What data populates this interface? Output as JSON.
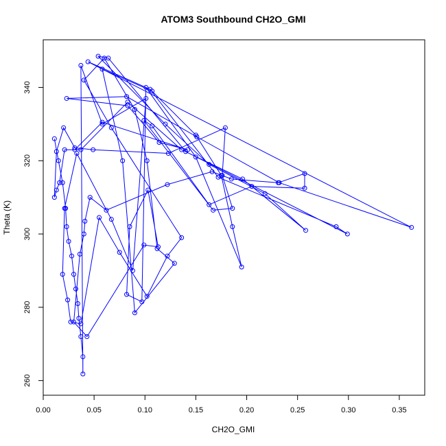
{
  "chart_data": {
    "type": "line",
    "title": "ATOM3 Southbound CH2O_GMI",
    "xlabel": "CH2O_GMI",
    "ylabel": "Theta (K)",
    "xlim": [
      0.0,
      0.375
    ],
    "ylim": [
      256.0,
      353.0
    ],
    "xticks": [
      0.0,
      0.05,
      0.1,
      0.15,
      0.2,
      0.25,
      0.3,
      0.35
    ],
    "xtick_labels": [
      "0.00",
      "0.05",
      "0.10",
      "0.15",
      "0.20",
      "0.25",
      "0.30",
      "0.35"
    ],
    "yticks": [
      260,
      280,
      300,
      320,
      340
    ],
    "ytick_labels": [
      "260",
      "280",
      "300",
      "320",
      "340"
    ],
    "grid": false,
    "marker": "open-circle",
    "series": [
      {
        "color": "#0000ff",
        "points": [
          [
            0.011,
            326.0
          ],
          [
            0.015,
            320.0
          ],
          [
            0.019,
            314.0
          ],
          [
            0.022,
            307.0
          ],
          [
            0.023,
            302.0
          ],
          [
            0.025,
            298.0
          ],
          [
            0.028,
            294.0
          ],
          [
            0.03,
            289.0
          ],
          [
            0.032,
            285.0
          ],
          [
            0.034,
            281.0
          ],
          [
            0.035,
            277.0
          ],
          [
            0.037,
            272.0
          ],
          [
            0.039,
            266.5
          ],
          [
            0.039,
            261.8
          ],
          [
            0.037,
            346.0
          ],
          [
            0.058,
            330.0
          ],
          [
            0.101,
            337.0
          ],
          [
            0.088,
            290.0
          ],
          [
            0.067,
            304.0
          ],
          [
            0.033,
            322.0
          ],
          [
            0.021,
            307.0
          ],
          [
            0.019,
            289.0
          ],
          [
            0.024,
            282.0
          ],
          [
            0.027,
            276.0
          ],
          [
            0.037,
            275.5
          ],
          [
            0.055,
            304.5
          ],
          [
            0.075,
            295.0
          ],
          [
            0.102,
            283.0
          ],
          [
            0.122,
            294.0
          ],
          [
            0.136,
            299.0
          ],
          [
            0.067,
            329.0
          ],
          [
            0.04,
            342.0
          ],
          [
            0.06,
            348.0
          ],
          [
            0.09,
            334.0
          ],
          [
            0.102,
            320.0
          ],
          [
            0.112,
            296.0
          ],
          [
            0.129,
            292.0
          ],
          [
            0.09,
            278.5
          ],
          [
            0.078,
            320.0
          ],
          [
            0.058,
            345.0
          ],
          [
            0.107,
            339.0
          ],
          [
            0.15,
            327.0
          ],
          [
            0.175,
            316.0
          ],
          [
            0.186,
            302.0
          ],
          [
            0.195,
            291.0
          ],
          [
            0.15,
            321.0
          ],
          [
            0.101,
            340.0
          ],
          [
            0.097,
            281.5
          ],
          [
            0.082,
            283.5
          ],
          [
            0.085,
            302.0
          ],
          [
            0.103,
            312.0
          ],
          [
            0.113,
            296.5
          ],
          [
            0.099,
            297.0
          ],
          [
            0.043,
            272.0
          ],
          [
            0.03,
            276.0
          ],
          [
            0.036,
            294.5
          ],
          [
            0.04,
            300.0
          ],
          [
            0.041,
            303.5
          ],
          [
            0.046,
            310.0
          ],
          [
            0.062,
            306.5
          ],
          [
            0.122,
            313.5
          ],
          [
            0.166,
            317.0
          ],
          [
            0.185,
            315.0
          ],
          [
            0.231,
            314.0
          ],
          [
            0.257,
            316.5
          ],
          [
            0.257,
            312.5
          ],
          [
            0.205,
            313.0
          ],
          [
            0.163,
            308.0
          ],
          [
            0.107,
            329.5
          ],
          [
            0.099,
            331.0
          ],
          [
            0.167,
            306.5
          ],
          [
            0.186,
            307.0
          ],
          [
            0.176,
            316.0
          ],
          [
            0.179,
            329.0
          ],
          [
            0.123,
            322.0
          ],
          [
            0.049,
            323.0
          ],
          [
            0.031,
            323.5
          ],
          [
            0.02,
            329.0
          ],
          [
            0.013,
            322.5
          ],
          [
            0.011,
            310.0
          ],
          [
            0.013,
            312.0
          ],
          [
            0.016,
            314.0
          ],
          [
            0.021,
            323.0
          ],
          [
            0.037,
            323.0
          ],
          [
            0.083,
            336.0
          ],
          [
            0.136,
            323.0
          ],
          [
            0.196,
            315.0
          ],
          [
            0.258,
            301.0
          ],
          [
            0.218,
            311.0
          ],
          [
            0.163,
            319.0
          ],
          [
            0.12,
            330.0
          ],
          [
            0.054,
            348.5
          ],
          [
            0.064,
            348.0
          ],
          [
            0.14,
            322.5
          ],
          [
            0.299,
            300.0
          ],
          [
            0.288,
            302.0
          ],
          [
            0.172,
            315.5
          ],
          [
            0.105,
            339.5
          ],
          [
            0.044,
            347.0
          ],
          [
            0.362,
            301.8
          ],
          [
            0.232,
            314.0
          ],
          [
            0.151,
            326.5
          ],
          [
            0.082,
            337.5
          ],
          [
            0.023,
            337.0
          ],
          [
            0.083,
            335.0
          ],
          [
            0.114,
            325.0
          ],
          [
            0.142,
            323.0
          ],
          [
            0.058,
            330.5
          ],
          [
            0.031,
            323.0
          ]
        ]
      }
    ]
  }
}
